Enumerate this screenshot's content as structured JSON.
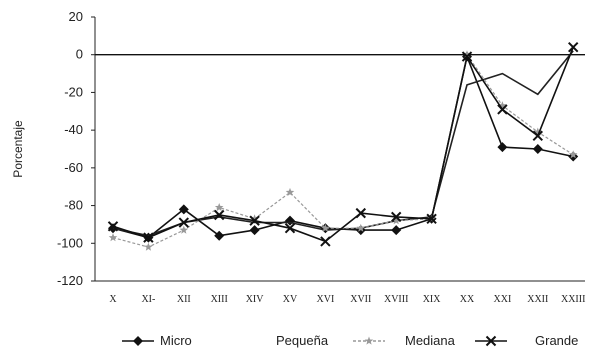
{
  "chart_data": {
    "type": "line",
    "title": "",
    "xlabel": "",
    "ylabel": "Porcentaje",
    "categories": [
      "X",
      "XI-",
      "XII",
      "XIII",
      "XIV",
      "XV",
      "XVI",
      "XVII",
      "XVIII",
      "XIX",
      "XX",
      "XXI",
      "XXII",
      "XXIII"
    ],
    "ylim": [
      -120,
      20
    ],
    "yticks": [
      20,
      0,
      -20,
      -40,
      -60,
      -80,
      -100,
      -120
    ],
    "grid": false,
    "legend_position": "bottom",
    "series": [
      {
        "name": "Micro",
        "marker": "diamond",
        "color": "#111111",
        "values": [
          -92,
          -97,
          -82,
          -96,
          -93,
          -88,
          -92,
          -93,
          -93,
          -87,
          -1,
          -49,
          -50,
          -54
        ]
      },
      {
        "name": "Pequeña",
        "marker": "none",
        "color": "#222222",
        "values": [
          -92,
          -96,
          -89,
          -86,
          -89,
          -89,
          -93,
          -92,
          -88,
          -86,
          -16,
          -10,
          -21,
          2
        ]
      },
      {
        "name": "Mediana",
        "marker": "star",
        "color": "#999999",
        "values": [
          -97,
          -102,
          -93,
          -81,
          -87,
          -73,
          -92,
          -92,
          -88,
          -87,
          0,
          -27,
          -41,
          -53
        ]
      },
      {
        "name": "Grande",
        "marker": "x",
        "color": "#111111",
        "values": [
          -91,
          -97,
          -89,
          -85,
          -88,
          -92,
          -99,
          -84,
          -86,
          -87,
          -1,
          -29,
          -43,
          4
        ]
      }
    ]
  }
}
